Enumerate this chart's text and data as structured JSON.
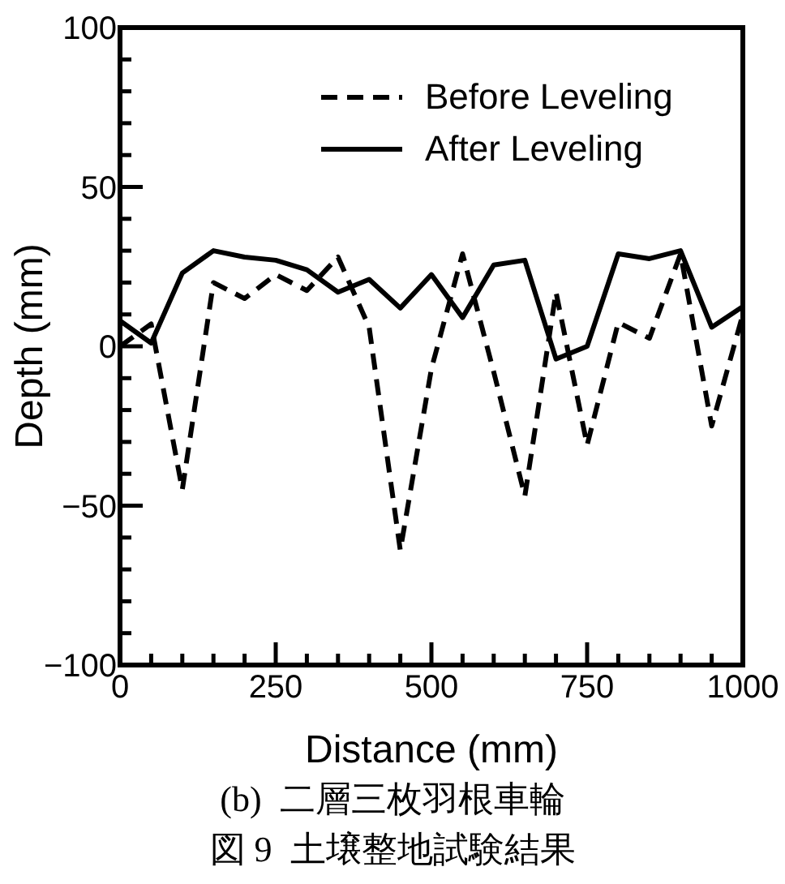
{
  "chart_data": {
    "type": "line",
    "xlabel": "Distance (mm)",
    "ylabel": "Depth (mm)",
    "x": [
      0,
      50,
      100,
      150,
      200,
      250,
      300,
      350,
      400,
      450,
      500,
      550,
      600,
      650,
      700,
      750,
      800,
      850,
      900,
      950,
      1000
    ],
    "series": [
      {
        "name": "Before Leveling",
        "color": "#000000",
        "line_style": "dashed",
        "values": [
          0,
          7,
          -45,
          20,
          15,
          22.5,
          17.5,
          28,
          6,
          -64,
          -7,
          29,
          -8,
          -47,
          17,
          -31,
          7.5,
          2.5,
          29,
          -25,
          10
        ]
      },
      {
        "name": "After Leveling",
        "color": "#000000",
        "line_style": "solid",
        "values": [
          8,
          1,
          23,
          30,
          28,
          27,
          24,
          17,
          21,
          12,
          22.5,
          9,
          25.5,
          27,
          -4,
          0,
          29,
          27.5,
          30,
          6,
          12.5
        ]
      }
    ],
    "xlim": [
      0,
      1000
    ],
    "ylim": [
      -100,
      100
    ],
    "xticks": [
      0,
      {
        "value": 50,
        "label": null
      },
      {
        "value": 100,
        "label": null
      },
      {
        "value": 150,
        "label": null
      },
      {
        "value": 200,
        "label": null
      },
      250,
      {
        "value": 300,
        "label": null
      },
      {
        "value": 350,
        "label": null
      },
      {
        "value": 400,
        "label": null
      },
      {
        "value": 450,
        "label": null
      },
      500,
      {
        "value": 550,
        "label": null
      },
      {
        "value": 600,
        "label": null
      },
      {
        "value": 650,
        "label": null
      },
      {
        "value": 700,
        "label": null
      },
      750,
      {
        "value": 800,
        "label": null
      },
      {
        "value": 850,
        "label": null
      },
      {
        "value": 900,
        "label": null
      },
      {
        "value": 950,
        "label": null
      },
      1000
    ],
    "yticks": [
      {
        "value": -100,
        "label": "−100"
      },
      {
        "value": -90,
        "label": null
      },
      {
        "value": -80,
        "label": null
      },
      {
        "value": -70,
        "label": null
      },
      {
        "value": -60,
        "label": null
      },
      {
        "value": -50,
        "label": "−50"
      },
      {
        "value": -40,
        "label": null
      },
      {
        "value": -30,
        "label": null
      },
      {
        "value": -20,
        "label": null
      },
      {
        "value": -10,
        "label": null
      },
      0,
      {
        "value": 10,
        "label": null
      },
      {
        "value": 20,
        "label": null
      },
      {
        "value": 30,
        "label": null
      },
      {
        "value": 40,
        "label": null
      },
      50,
      {
        "value": 60,
        "label": null
      },
      {
        "value": 70,
        "label": null
      },
      {
        "value": 80,
        "label": null
      },
      {
        "value": 90,
        "label": null
      },
      100
    ],
    "grid": false,
    "legend": "top right",
    "marker": "none",
    "annotations": [
      "(b)  二層三枚羽根車輪",
      "図 9  土壌整地試験結果"
    ]
  }
}
